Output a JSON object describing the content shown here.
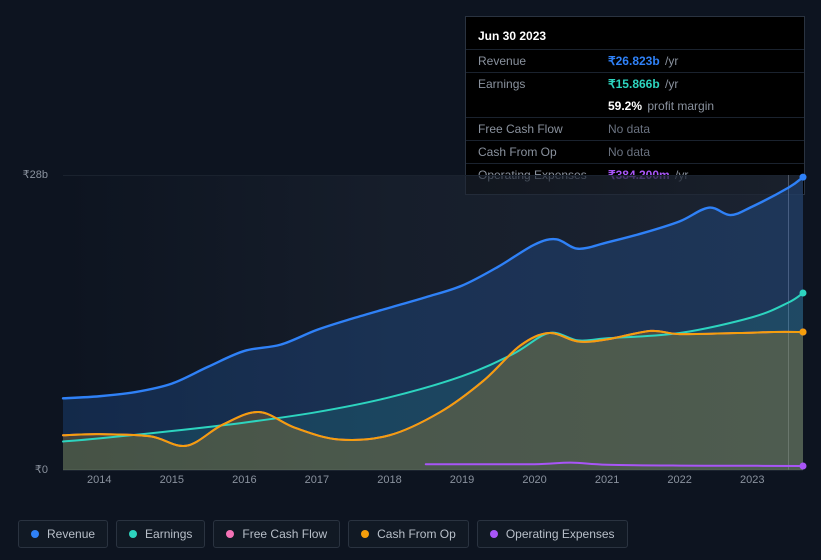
{
  "chart": {
    "type": "area",
    "background_color": "#0d1420",
    "area_gradient_left": "rgba(30,38,52,0.0)",
    "area_gradient_right": "rgba(30,38,52,0.85)",
    "grid_color": "#1a222e",
    "text_color": "#8a929e",
    "x_type": "year",
    "x_min": 2013.5,
    "x_max": 2023.7,
    "x_ticks": [
      2014,
      2015,
      2016,
      2017,
      2018,
      2019,
      2020,
      2021,
      2022,
      2023
    ],
    "y_min": 0,
    "y_max": 28,
    "y_unit": "b",
    "y_currency": "₹",
    "y_labels": [
      {
        "value": 28,
        "text": "₹28b"
      },
      {
        "value": 0,
        "text": "₹0"
      }
    ],
    "marker_x": 2023.5,
    "series": [
      {
        "id": "revenue",
        "label": "Revenue",
        "color": "#2f81f7",
        "fill": "rgba(47,129,247,0.20)",
        "width": 2.4,
        "data": [
          [
            2013.5,
            6.8
          ],
          [
            2014.0,
            7.0
          ],
          [
            2014.5,
            7.4
          ],
          [
            2015.0,
            8.2
          ],
          [
            2015.5,
            9.8
          ],
          [
            2016.0,
            11.3
          ],
          [
            2016.5,
            11.9
          ],
          [
            2017.0,
            13.3
          ],
          [
            2017.5,
            14.4
          ],
          [
            2018.0,
            15.4
          ],
          [
            2018.5,
            16.4
          ],
          [
            2019.0,
            17.5
          ],
          [
            2019.5,
            19.3
          ],
          [
            2020.0,
            21.4
          ],
          [
            2020.3,
            21.9
          ],
          [
            2020.6,
            21.0
          ],
          [
            2021.0,
            21.6
          ],
          [
            2021.5,
            22.5
          ],
          [
            2022.0,
            23.6
          ],
          [
            2022.4,
            24.9
          ],
          [
            2022.7,
            24.2
          ],
          [
            2023.0,
            25.0
          ],
          [
            2023.5,
            26.8
          ],
          [
            2023.7,
            27.8
          ]
        ]
      },
      {
        "id": "earnings",
        "label": "Earnings",
        "color": "#2dd4bf",
        "fill": "rgba(45,212,191,0.12)",
        "width": 2.0,
        "data": [
          [
            2013.5,
            2.7
          ],
          [
            2014.0,
            3.0
          ],
          [
            2015.0,
            3.7
          ],
          [
            2016.0,
            4.5
          ],
          [
            2017.0,
            5.5
          ],
          [
            2018.0,
            6.9
          ],
          [
            2019.0,
            8.9
          ],
          [
            2019.7,
            11.0
          ],
          [
            2020.2,
            13.0
          ],
          [
            2020.6,
            12.3
          ],
          [
            2021.0,
            12.5
          ],
          [
            2022.0,
            13.0
          ],
          [
            2023.0,
            14.5
          ],
          [
            2023.5,
            15.9
          ],
          [
            2023.7,
            16.8
          ]
        ]
      },
      {
        "id": "fcf",
        "label": "Free Cash Flow",
        "color": "#f472b6",
        "fill": "none",
        "width": 2.0,
        "data": [
          [
            2013.5,
            3.3
          ],
          [
            2014.0,
            3.4
          ],
          [
            2014.7,
            3.2
          ],
          [
            2015.2,
            2.3
          ],
          [
            2015.7,
            4.3
          ],
          [
            2016.2,
            5.5
          ],
          [
            2016.7,
            4.0
          ],
          [
            2017.3,
            2.9
          ],
          [
            2018.0,
            3.3
          ],
          [
            2018.7,
            5.5
          ],
          [
            2019.3,
            8.5
          ],
          [
            2019.8,
            11.8
          ],
          [
            2020.2,
            13.0
          ],
          [
            2020.6,
            12.2
          ],
          [
            2021.0,
            12.4
          ],
          [
            2021.6,
            13.2
          ],
          [
            2022.0,
            12.9
          ],
          [
            2022.8,
            13.0
          ],
          [
            2023.3,
            13.1
          ],
          [
            2023.7,
            13.1
          ]
        ]
      },
      {
        "id": "cfo",
        "label": "Cash From Op",
        "color": "#f59e0b",
        "fill": "rgba(245,158,11,0.22)",
        "width": 2.0,
        "data": [
          [
            2013.5,
            3.3
          ],
          [
            2014.0,
            3.4
          ],
          [
            2014.7,
            3.2
          ],
          [
            2015.2,
            2.3
          ],
          [
            2015.7,
            4.3
          ],
          [
            2016.2,
            5.5
          ],
          [
            2016.7,
            4.0
          ],
          [
            2017.3,
            2.9
          ],
          [
            2018.0,
            3.3
          ],
          [
            2018.7,
            5.5
          ],
          [
            2019.3,
            8.5
          ],
          [
            2019.8,
            11.8
          ],
          [
            2020.2,
            13.0
          ],
          [
            2020.6,
            12.2
          ],
          [
            2021.0,
            12.4
          ],
          [
            2021.6,
            13.2
          ],
          [
            2022.0,
            12.9
          ],
          [
            2022.8,
            13.0
          ],
          [
            2023.3,
            13.1
          ],
          [
            2023.7,
            13.1
          ]
        ]
      },
      {
        "id": "opex",
        "label": "Operating Expenses",
        "color": "#a855f7",
        "fill": "none",
        "width": 2.0,
        "data": [
          [
            2018.5,
            0.55
          ],
          [
            2019.0,
            0.55
          ],
          [
            2020.0,
            0.55
          ],
          [
            2020.5,
            0.7
          ],
          [
            2021.0,
            0.5
          ],
          [
            2022.0,
            0.42
          ],
          [
            2023.0,
            0.4
          ],
          [
            2023.7,
            0.38
          ]
        ]
      }
    ]
  },
  "tooltip": {
    "title": "Jun 30 2023",
    "rows": [
      {
        "label": "Revenue",
        "value": "₹26.823b",
        "unit": "/yr",
        "color": "#2f81f7",
        "nodata": false
      },
      {
        "label": "Earnings",
        "value": "₹15.866b",
        "unit": "/yr",
        "color": "#2dd4bf",
        "nodata": false
      },
      {
        "label": "",
        "value": "59.2%",
        "unit": "profit margin",
        "color": "#ffffff",
        "nodata": false,
        "indent": true
      },
      {
        "label": "Free Cash Flow",
        "value": "No data",
        "unit": "",
        "color": "",
        "nodata": true
      },
      {
        "label": "Cash From Op",
        "value": "No data",
        "unit": "",
        "color": "",
        "nodata": true
      },
      {
        "label": "Operating Expenses",
        "value": "₹384.200m",
        "unit": "/yr",
        "color": "#a855f7",
        "nodata": false
      }
    ]
  },
  "legend": [
    {
      "id": "revenue",
      "label": "Revenue",
      "color": "#2f81f7"
    },
    {
      "id": "earnings",
      "label": "Earnings",
      "color": "#2dd4bf"
    },
    {
      "id": "fcf",
      "label": "Free Cash Flow",
      "color": "#f472b6"
    },
    {
      "id": "cfo",
      "label": "Cash From Op",
      "color": "#f59e0b"
    },
    {
      "id": "opex",
      "label": "Operating Expenses",
      "color": "#a855f7"
    }
  ]
}
